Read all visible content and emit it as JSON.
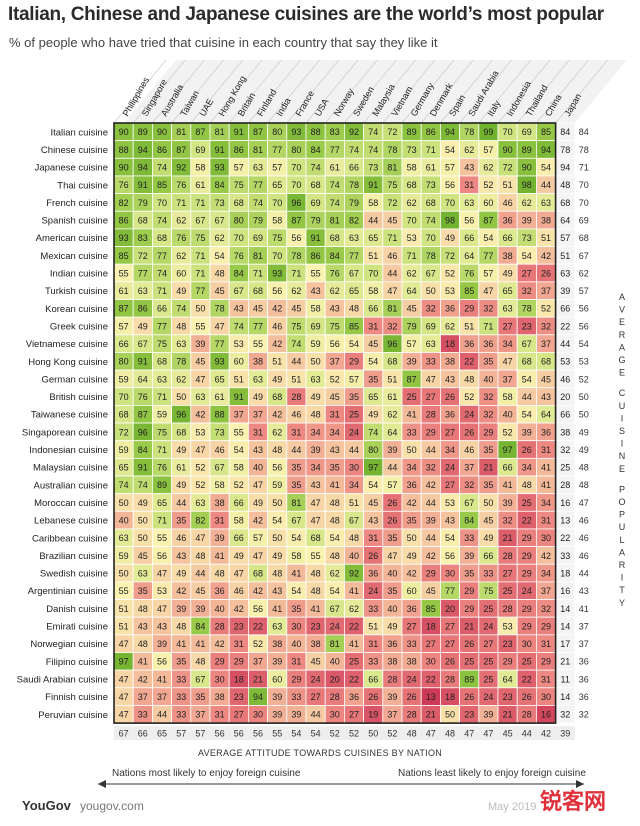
{
  "title": "Italian, Chinese and Japanese cuisines are the world’s most popular",
  "subtitle": "% of people who have tried that cuisine in each country that say they like it",
  "chart_data": {
    "type": "heatmap",
    "countries": [
      "Philippines",
      "Singapore",
      "Australia",
      "Taiwan",
      "UAE",
      "Hong Kong",
      "Britain",
      "Finland",
      "India",
      "France",
      "USA",
      "Norway",
      "Sweden",
      "Malaysia",
      "Vietnam",
      "Germany",
      "Denmark",
      "Spain",
      "Saudi Arabia",
      "Italy",
      "Indonesia",
      "Thailand",
      "China",
      "Japan"
    ],
    "cuisines": [
      "Italian cuisine",
      "Chinese cuisine",
      "Japanese cuisine",
      "Thai cuisine",
      "French cuisine",
      "Spanish cuisine",
      "American cuisine",
      "Mexican cuisine",
      "Indian cuisine",
      "Turkish cuisine",
      "Korean cuisine",
      "Greek cuisine",
      "Vietnamese cuisine",
      "Hong Kong cuisine",
      "German cuisine",
      "British cuisine",
      "Taiwanese cuisine",
      "Singaporean cuisine",
      "Indonesian cuisine",
      "Malaysian cuisine",
      "Australian cuisine",
      "Moroccan cuisine",
      "Lebanese cuisine",
      "Caribbean cuisine",
      "Brazilian cuisine",
      "Swedish cuisine",
      "Argentinian cuisine",
      "Danish cuisine",
      "Emirati cuisine",
      "Norwegian cuisine",
      "Filipino cuisine",
      "Saudi Arabian cuisine",
      "Finnish cuisine",
      "Peruvian cuisine"
    ],
    "values": [
      [
        90,
        89,
        90,
        81,
        87,
        81,
        91,
        87,
        80,
        93,
        88,
        83,
        92,
        74,
        72,
        89,
        86,
        94,
        78,
        99,
        70,
        69,
        85,
        84
      ],
      [
        88,
        94,
        86,
        87,
        69,
        91,
        86,
        81,
        77,
        80,
        84,
        77,
        74,
        74,
        78,
        73,
        71,
        54,
        62,
        57,
        90,
        89,
        94,
        78
      ],
      [
        90,
        94,
        74,
        92,
        58,
        93,
        57,
        63,
        57,
        70,
        74,
        61,
        66,
        73,
        81,
        58,
        61,
        57,
        43,
        62,
        72,
        90,
        54,
        94
      ],
      [
        76,
        91,
        85,
        76,
        61,
        84,
        75,
        77,
        65,
        70,
        68,
        74,
        78,
        91,
        75,
        68,
        73,
        56,
        31,
        52,
        51,
        98,
        44,
        48
      ],
      [
        82,
        79,
        70,
        71,
        71,
        73,
        68,
        74,
        70,
        96,
        69,
        74,
        79,
        58,
        72,
        62,
        68,
        70,
        63,
        60,
        46,
        62,
        63,
        68
      ],
      [
        86,
        68,
        74,
        62,
        67,
        67,
        80,
        79,
        58,
        87,
        79,
        81,
        82,
        44,
        45,
        70,
        74,
        98,
        56,
        87,
        36,
        39,
        38,
        64
      ],
      [
        93,
        83,
        68,
        76,
        75,
        62,
        70,
        69,
        75,
        56,
        91,
        68,
        63,
        65,
        71,
        53,
        70,
        49,
        66,
        54,
        66,
        73,
        51,
        57
      ],
      [
        85,
        72,
        77,
        62,
        71,
        54,
        76,
        81,
        70,
        78,
        86,
        84,
        77,
        51,
        46,
        71,
        78,
        72,
        64,
        77,
        38,
        54,
        42,
        51
      ],
      [
        55,
        77,
        74,
        60,
        71,
        48,
        84,
        71,
        93,
        71,
        55,
        76,
        67,
        70,
        44,
        62,
        67,
        52,
        76,
        57,
        49,
        27,
        26,
        63
      ],
      [
        61,
        63,
        71,
        49,
        77,
        45,
        67,
        68,
        56,
        62,
        43,
        62,
        65,
        58,
        47,
        64,
        50,
        53,
        85,
        47,
        65,
        32,
        37,
        39
      ],
      [
        87,
        86,
        66,
        74,
        50,
        78,
        43,
        45,
        42,
        45,
        58,
        43,
        48,
        66,
        81,
        45,
        32,
        36,
        29,
        32,
        63,
        78,
        52,
        66
      ],
      [
        57,
        49,
        77,
        48,
        55,
        47,
        74,
        77,
        46,
        75,
        69,
        75,
        85,
        31,
        32,
        79,
        69,
        62,
        51,
        71,
        27,
        23,
        32,
        22
      ],
      [
        66,
        67,
        75,
        63,
        39,
        77,
        53,
        55,
        42,
        74,
        59,
        56,
        54,
        45,
        96,
        57,
        63,
        18,
        36,
        36,
        34,
        67,
        37,
        44
      ],
      [
        80,
        91,
        68,
        78,
        45,
        93,
        60,
        38,
        51,
        44,
        50,
        37,
        29,
        54,
        68,
        39,
        33,
        38,
        22,
        35,
        47,
        68,
        68,
        53
      ],
      [
        59,
        64,
        63,
        62,
        47,
        65,
        51,
        63,
        49,
        51,
        63,
        52,
        57,
        35,
        51,
        87,
        47,
        43,
        48,
        40,
        37,
        54,
        45,
        46
      ],
      [
        70,
        76,
        71,
        50,
        63,
        61,
        91,
        49,
        68,
        28,
        49,
        45,
        35,
        65,
        61,
        25,
        27,
        26,
        52,
        32,
        58,
        44,
        43,
        20
      ],
      [
        68,
        87,
        59,
        96,
        42,
        88,
        37,
        37,
        42,
        46,
        48,
        31,
        25,
        49,
        62,
        41,
        28,
        36,
        24,
        32,
        40,
        54,
        64,
        66
      ],
      [
        72,
        96,
        75,
        68,
        53,
        73,
        55,
        31,
        62,
        31,
        34,
        34,
        24,
        74,
        64,
        33,
        29,
        27,
        26,
        29,
        52,
        39,
        36,
        38
      ],
      [
        59,
        84,
        71,
        49,
        47,
        46,
        54,
        43,
        48,
        44,
        39,
        43,
        44,
        80,
        39,
        50,
        44,
        34,
        46,
        35,
        97,
        26,
        31,
        32
      ],
      [
        65,
        91,
        76,
        61,
        52,
        67,
        58,
        40,
        56,
        35,
        34,
        35,
        30,
        97,
        44,
        34,
        32,
        24,
        37,
        21,
        66,
        34,
        41,
        25
      ],
      [
        74,
        74,
        89,
        49,
        52,
        58,
        52,
        47,
        59,
        35,
        43,
        41,
        34,
        54,
        57,
        36,
        42,
        27,
        32,
        35,
        41,
        48,
        41,
        28
      ],
      [
        50,
        49,
        65,
        44,
        63,
        38,
        66,
        49,
        50,
        81,
        47,
        48,
        51,
        45,
        26,
        42,
        44,
        53,
        67,
        50,
        39,
        25,
        34,
        16
      ],
      [
        40,
        50,
        71,
        35,
        82,
        31,
        58,
        42,
        54,
        67,
        47,
        48,
        67,
        43,
        26,
        35,
        39,
        43,
        84,
        45,
        32,
        22,
        31,
        13
      ],
      [
        63,
        50,
        55,
        46,
        47,
        39,
        66,
        57,
        50,
        54,
        68,
        54,
        48,
        31,
        35,
        50,
        44,
        54,
        33,
        49,
        21,
        29,
        30,
        22
      ],
      [
        59,
        45,
        56,
        43,
        48,
        41,
        49,
        47,
        49,
        58,
        55,
        48,
        40,
        26,
        47,
        49,
        42,
        56,
        39,
        66,
        28,
        29,
        42,
        33
      ],
      [
        50,
        63,
        47,
        49,
        44,
        48,
        47,
        68,
        48,
        41,
        48,
        62,
        92,
        36,
        40,
        42,
        29,
        30,
        35,
        33,
        27,
        29,
        34,
        18
      ],
      [
        55,
        35,
        53,
        42,
        45,
        36,
        46,
        42,
        43,
        54,
        48,
        54,
        41,
        24,
        35,
        60,
        45,
        77,
        29,
        75,
        25,
        24,
        37,
        16
      ],
      [
        51,
        48,
        47,
        39,
        39,
        40,
        42,
        56,
        41,
        35,
        41,
        67,
        62,
        33,
        40,
        36,
        85,
        20,
        29,
        25,
        28,
        29,
        32,
        14
      ],
      [
        51,
        43,
        43,
        48,
        84,
        28,
        23,
        22,
        63,
        30,
        23,
        24,
        22,
        51,
        49,
        27,
        18,
        27,
        21,
        24,
        53,
        29,
        29,
        14
      ],
      [
        47,
        48,
        39,
        41,
        41,
        42,
        31,
        52,
        38,
        40,
        38,
        81,
        41,
        31,
        36,
        33,
        27,
        27,
        26,
        27,
        23,
        30,
        31,
        17
      ],
      [
        97,
        41,
        56,
        35,
        48,
        29,
        29,
        37,
        39,
        31,
        45,
        40,
        25,
        33,
        38,
        38,
        30,
        26,
        25,
        25,
        29,
        25,
        29,
        21
      ],
      [
        47,
        42,
        41,
        33,
        67,
        30,
        18,
        21,
        60,
        29,
        24,
        20,
        22,
        66,
        28,
        24,
        22,
        28,
        89,
        25,
        64,
        22,
        31,
        11
      ],
      [
        47,
        37,
        37,
        33,
        35,
        38,
        23,
        94,
        39,
        33,
        27,
        28,
        36,
        26,
        39,
        26,
        13,
        18,
        26,
        24,
        23,
        26,
        30,
        14
      ],
      [
        47,
        33,
        44,
        33,
        37,
        31,
        27,
        30,
        39,
        39,
        44,
        30,
        27,
        19,
        37,
        28,
        21,
        50,
        23,
        39,
        21,
        28,
        16,
        32
      ]
    ],
    "row_average": [
      84,
      78,
      71,
      70,
      70,
      69,
      68,
      67,
      62,
      57,
      56,
      56,
      54,
      53,
      52,
      50,
      50,
      49,
      49,
      48,
      48,
      47,
      46,
      46,
      46,
      44,
      43,
      41,
      37,
      37,
      36,
      36,
      36,
      32
    ],
    "column_average": [
      67,
      66,
      65,
      57,
      57,
      56,
      56,
      56,
      55,
      54,
      54,
      52,
      52,
      50,
      52,
      48,
      47,
      48,
      47,
      47,
      45,
      44,
      42,
      39
    ],
    "x_axis_title": "AVERAGE ATTITUDE TOWARDS CUISINES BY NATION",
    "right_axis_title": "AVERAGE CUISINE POPULARITY",
    "arrow_left_label": "Nations most likely to enjoy foreign cuisine",
    "arrow_right_label": "Nations least likely to enjoy foreign cuisine"
  },
  "footer": {
    "brand": "YouGov",
    "url": "yougov.com",
    "date": "May 2019",
    "watermark": "锐客网"
  }
}
